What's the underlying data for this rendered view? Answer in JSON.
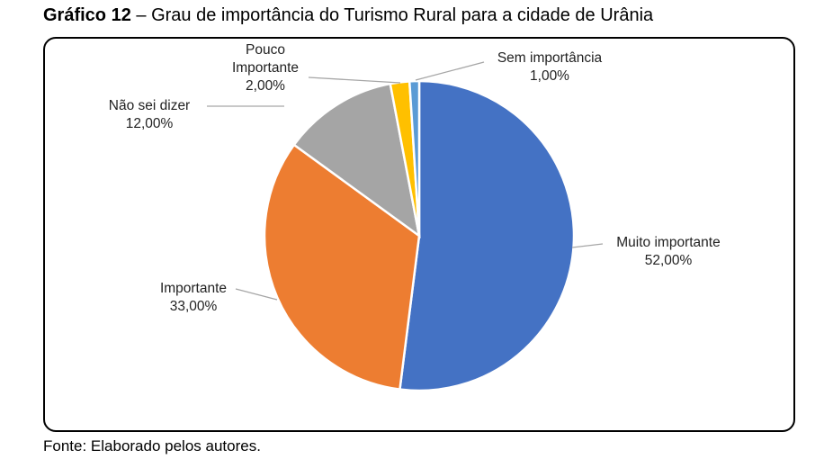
{
  "title_prefix": "Gráfico 12",
  "title_rest": " – Grau de importância do Turismo Rural para a cidade de Urânia",
  "source": "Fonte: Elaborado pelos autores.",
  "chart_data": {
    "type": "pie",
    "title": "Gráfico 12 – Grau de importância do Turismo Rural para a cidade de Urânia",
    "slices": [
      {
        "label": "Muito importante",
        "value": 52,
        "display": "52,00%",
        "color": "#4472C4"
      },
      {
        "label": "Importante",
        "value": 33,
        "display": "33,00%",
        "color": "#ED7D31"
      },
      {
        "label": "Não sei dizer",
        "value": 12,
        "display": "12,00%",
        "color": "#A5A5A5"
      },
      {
        "label": "Pouco Importante",
        "value": 2,
        "display": "2,00%",
        "color": "#FFC000"
      },
      {
        "label": "Sem importância",
        "value": 1,
        "display": "1,00%",
        "color": "#5B9BD5"
      }
    ],
    "legend": "none",
    "data_labels": "outside with leader lines"
  }
}
